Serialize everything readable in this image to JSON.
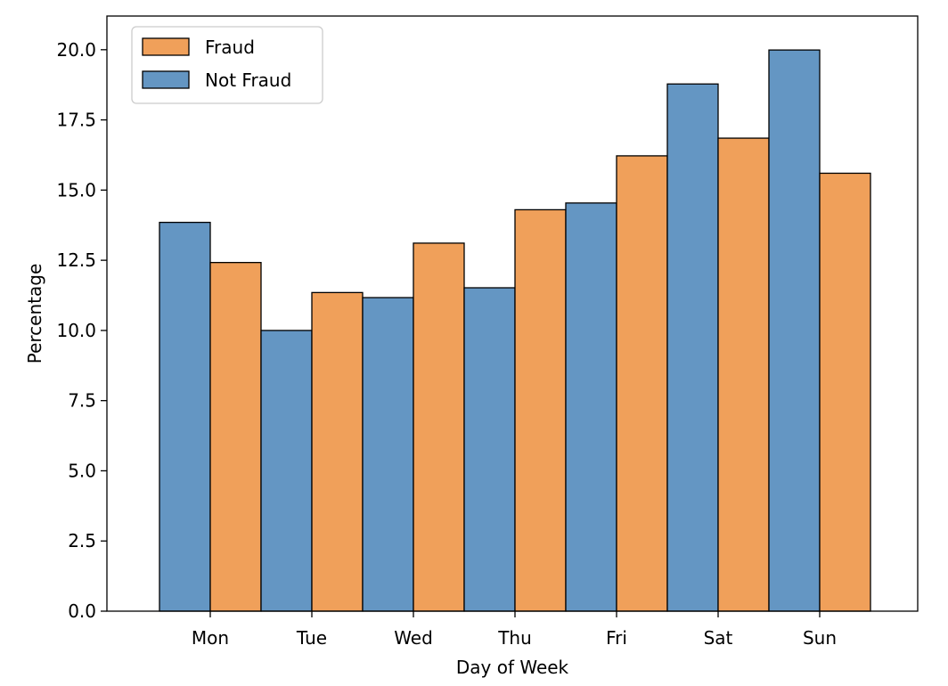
{
  "chart_data": {
    "type": "bar",
    "title": "",
    "xlabel": "Day of Week",
    "ylabel": "Percentage",
    "categories": [
      "Mon",
      "Tue",
      "Wed",
      "Thu",
      "Fri",
      "Sat",
      "Sun"
    ],
    "ylim": [
      0,
      21.2
    ],
    "yticks": [
      0.0,
      2.5,
      5.0,
      7.5,
      10.0,
      12.5,
      15.0,
      17.5,
      20.0
    ],
    "ytick_labels": [
      "0.0",
      "2.5",
      "5.0",
      "7.5",
      "10.0",
      "12.5",
      "15.0",
      "17.5",
      "20.0"
    ],
    "grid": false,
    "legend_position": "upper-left",
    "series": [
      {
        "name": "Not Fraud",
        "color": "#6496c3",
        "values": [
          13.85,
          10.0,
          11.17,
          11.52,
          14.54,
          18.78,
          19.99
        ]
      },
      {
        "name": "Fraud",
        "color": "#f0a05a",
        "values": [
          12.42,
          11.35,
          13.11,
          14.3,
          16.22,
          16.85,
          15.6
        ]
      }
    ],
    "legend_order": [
      "Fraud",
      "Not Fraud"
    ]
  }
}
